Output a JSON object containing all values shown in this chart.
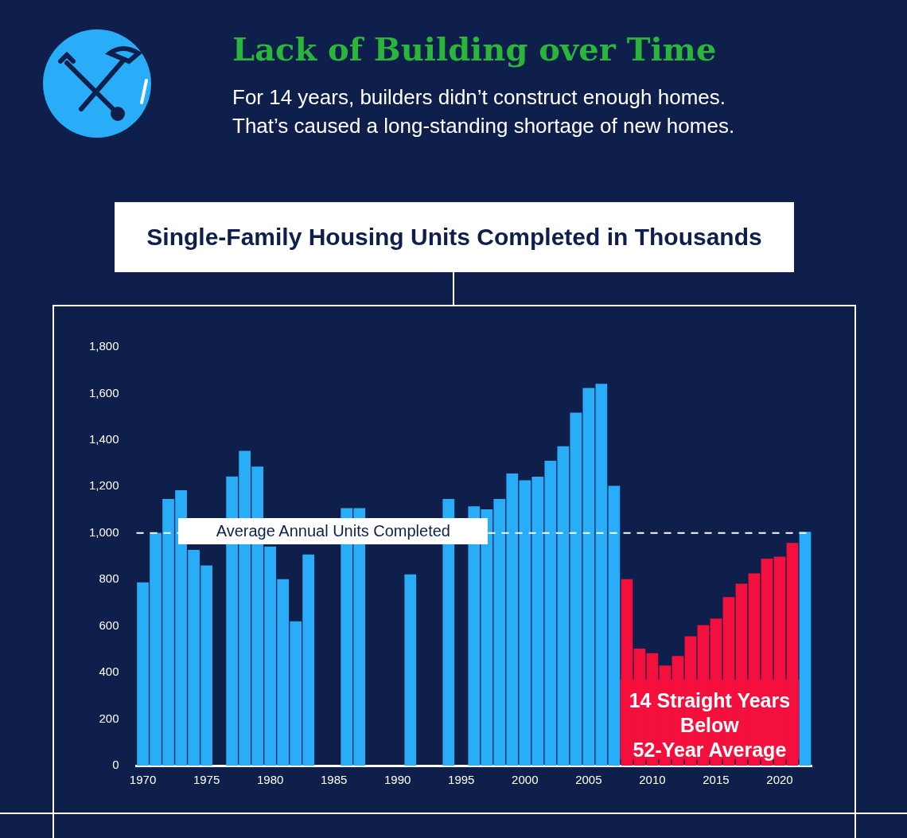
{
  "chart_data": {
    "type": "bar",
    "title": "Lack of Building over Time",
    "subtitle": "For 14 years, builders didn’t construct enough homes.\nThat’s caused a long-standing shortage of new homes.",
    "categories": [
      "1970",
      null,
      null,
      null,
      null,
      "1975",
      null,
      null,
      null,
      null,
      "1980",
      null,
      null,
      null,
      null,
      "1985",
      null,
      null,
      null,
      null,
      "1990",
      null,
      null,
      null,
      null,
      "1995",
      null,
      null,
      null,
      null,
      "2000",
      null,
      null,
      null,
      null,
      "2005",
      null,
      null,
      null,
      null,
      "2010",
      null,
      null,
      null,
      null,
      "2015",
      null,
      null,
      null,
      null,
      "2020",
      null,
      null
    ],
    "values": [
      788,
      1001,
      1146,
      1184,
      927,
      861,
      null,
      1243,
      1353,
      1286,
      942,
      802,
      620,
      908,
      null,
      null,
      1107,
      1107,
      null,
      null,
      null,
      822,
      null,
      null,
      1146,
      null,
      1115,
      1102,
      1146,
      1256,
      1227,
      1242,
      1311,
      1373,
      1518,
      1624,
      1642,
      1203,
      802,
      503,
      483,
      430,
      471,
      556,
      604,
      632,
      725,
      782,
      826,
      890,
      898,
      957,
      1005
    ],
    "colors": [
      "#29adf8",
      "#29adf8",
      "#29adf8",
      "#29adf8",
      "#29adf8",
      "#29adf8",
      "#29adf8",
      "#29adf8",
      "#29adf8",
      "#29adf8",
      "#29adf8",
      "#29adf8",
      "#29adf8",
      "#29adf8",
      "#29adf8",
      "#29adf8",
      "#29adf8",
      "#29adf8",
      "#29adf8",
      "#29adf8",
      "#29adf8",
      "#29adf8",
      "#29adf8",
      "#29adf8",
      "#29adf8",
      "#29adf8",
      "#29adf8",
      "#29adf8",
      "#29adf8",
      "#29adf8",
      "#29adf8",
      "#29adf8",
      "#29adf8",
      "#29adf8",
      "#29adf8",
      "#29adf8",
      "#29adf8",
      "#29adf8",
      "#f50f3c",
      "#f50f3c",
      "#f50f3c",
      "#f50f3c",
      "#f50f3c",
      "#f50f3c",
      "#f50f3c",
      "#f50f3c",
      "#f50f3c",
      "#f50f3c",
      "#f50f3c",
      "#f50f3c",
      "#f50f3c",
      "#f50f3c",
      "#29adf8"
    ],
    "ylim": [
      0,
      1800
    ],
    "yticks": [
      0,
      200,
      400,
      600,
      800,
      {
        "value": 1000,
        "label": "1,000"
      },
      {
        "value": 1200,
        "label": "1,200"
      },
      {
        "value": 1400,
        "label": "1,400"
      },
      {
        "value": 1600,
        "label": "1,600"
      },
      {
        "value": 1800,
        "label": "1,800"
      }
    ],
    "ref_lines": [
      {
        "axis": "y",
        "value": 1000,
        "label": "Average Annual Units Completed",
        "color": "#ffffff",
        "line_style": "dashed"
      }
    ],
    "annotations": [
      "Single-Family Housing Units Completed in Thousands",
      "14 Straight Years\nBelow\n52-Year Average"
    ]
  }
}
